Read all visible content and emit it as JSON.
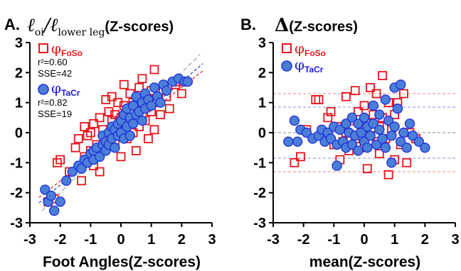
{
  "colors": {
    "foso": "#e8141c",
    "tacr": "#2233dd",
    "tacr_fill": "#4b7fd6",
    "zero_line": "#8a8a8a",
    "ci_red": "#f08080",
    "ci_blue": "#8888ee"
  },
  "panels": {
    "a": {
      "letter": "A.",
      "title_l1": "ℓ",
      "title_l1_sub": "oi",
      "title_sep": "/",
      "title_l2": "ℓ",
      "title_l2_sub": "lower leg",
      "title_suffix": "(Z-scores)",
      "legend_foso_symbol": "φ",
      "legend_foso_sub": "FoSo",
      "legend_foso_r2": "r²=0.60",
      "legend_foso_sse": "SSE=42",
      "legend_tacr_symbol": "φ",
      "legend_tacr_sub": "TaCr",
      "legend_tacr_r2": "r²=0.82",
      "legend_tacr_sse": "SSE=19",
      "xlabel": "Foot Angles(Z-scores)"
    },
    "b": {
      "letter": "B.",
      "title_delta": "Δ",
      "title_suffix": "(Z-scores)",
      "legend_foso_symbol": "φ",
      "legend_foso_sub": "FoSo",
      "legend_tacr_symbol": "φ",
      "legend_tacr_sub": "TaCr",
      "xlabel": "mean(Z-scores)"
    }
  },
  "chart_data": [
    {
      "type": "scatter",
      "panel": "A",
      "xlabel": "Foot Angles(Z-scores)",
      "xlim": [
        -3,
        3
      ],
      "ylim": [
        -3,
        3
      ],
      "xticks": [
        "-3",
        "-2",
        "-1",
        "0",
        "1",
        "2",
        "3"
      ],
      "yticks": [
        "3",
        "2",
        "1",
        "0",
        "-1",
        "-2",
        "-3"
      ],
      "series": [
        {
          "name": "φFoSo",
          "marker": "square",
          "regression": {
            "slope": 0.78,
            "intercept": -0.05,
            "r2": 0.6,
            "sse": 42
          },
          "points": [
            [
              -2.4,
              -2.3
            ],
            [
              -2.2,
              -2.2
            ],
            [
              -2.1,
              -1.0
            ],
            [
              -2.0,
              -0.9
            ],
            [
              -1.7,
              -1.3
            ],
            [
              -1.5,
              -0.5
            ],
            [
              -1.4,
              -0.2
            ],
            [
              -1.3,
              -1.6
            ],
            [
              -1.2,
              -0.8
            ],
            [
              -1.2,
              0.2
            ],
            [
              -1.1,
              -0.1
            ],
            [
              -1.0,
              -0.6
            ],
            [
              -1.0,
              0.0
            ],
            [
              -0.9,
              -1.1
            ],
            [
              -0.9,
              0.3
            ],
            [
              -0.8,
              -0.4
            ],
            [
              -0.7,
              -1.3
            ],
            [
              -0.7,
              0.5
            ],
            [
              -0.6,
              0.1
            ],
            [
              -0.5,
              -0.5
            ],
            [
              -0.5,
              1.1
            ],
            [
              -0.4,
              0.7
            ],
            [
              -0.4,
              -0.1
            ],
            [
              -0.3,
              0.4
            ],
            [
              -0.3,
              1.2
            ],
            [
              -0.2,
              -0.3
            ],
            [
              -0.2,
              0.6
            ],
            [
              -0.1,
              1.0
            ],
            [
              -0.1,
              0.2
            ],
            [
              0.0,
              -0.8
            ],
            [
              0.0,
              0.5
            ],
            [
              0.1,
              0.9
            ],
            [
              0.1,
              1.6
            ],
            [
              0.2,
              -0.2
            ],
            [
              0.2,
              0.3
            ],
            [
              0.3,
              1.3
            ],
            [
              0.3,
              0.7
            ],
            [
              0.4,
              0.0
            ],
            [
              0.4,
              1.0
            ],
            [
              0.5,
              0.5
            ],
            [
              0.5,
              -0.6
            ],
            [
              0.6,
              1.5
            ],
            [
              0.6,
              0.2
            ],
            [
              0.7,
              0.9
            ],
            [
              0.7,
              1.8
            ],
            [
              0.8,
              0.4
            ],
            [
              0.9,
              1.1
            ],
            [
              0.9,
              -0.2
            ],
            [
              1.0,
              0.7
            ],
            [
              1.0,
              1.4
            ],
            [
              1.1,
              0.1
            ],
            [
              1.1,
              2.1
            ],
            [
              1.2,
              1.0
            ],
            [
              1.3,
              0.6
            ],
            [
              1.4,
              1.4
            ],
            [
              1.5,
              1.2
            ],
            [
              1.6,
              0.8
            ],
            [
              1.8,
              1.6
            ],
            [
              1.9,
              1.7
            ],
            [
              2.0,
              1.3
            ]
          ]
        },
        {
          "name": "φTaCr",
          "marker": "circle",
          "regression": {
            "slope": 0.86,
            "intercept": -0.02,
            "r2": 0.82,
            "sse": 19
          },
          "points": [
            [
              -2.5,
              -1.9
            ],
            [
              -2.4,
              -2.3
            ],
            [
              -2.3,
              -2.1
            ],
            [
              -2.2,
              -2.6
            ],
            [
              -2.0,
              -2.3
            ],
            [
              -1.8,
              -1.6
            ],
            [
              -1.6,
              -1.3
            ],
            [
              -1.4,
              -1.1
            ],
            [
              -1.3,
              -1.2
            ],
            [
              -1.2,
              -0.9
            ],
            [
              -1.1,
              -1.0
            ],
            [
              -1.0,
              -0.7
            ],
            [
              -0.9,
              -0.6
            ],
            [
              -0.9,
              -0.9
            ],
            [
              -0.8,
              -0.5
            ],
            [
              -0.7,
              -0.8
            ],
            [
              -0.6,
              -0.4
            ],
            [
              -0.6,
              -0.1
            ],
            [
              -0.5,
              -0.3
            ],
            [
              -0.5,
              -0.6
            ],
            [
              -0.4,
              0.0
            ],
            [
              -0.4,
              -0.4
            ],
            [
              -0.3,
              0.2
            ],
            [
              -0.3,
              -0.2
            ],
            [
              -0.2,
              0.1
            ],
            [
              -0.2,
              -0.5
            ],
            [
              -0.1,
              0.3
            ],
            [
              -0.1,
              -0.1
            ],
            [
              0.0,
              0.0
            ],
            [
              0.0,
              0.4
            ],
            [
              0.1,
              0.6
            ],
            [
              0.1,
              -0.2
            ],
            [
              0.2,
              0.2
            ],
            [
              0.2,
              0.8
            ],
            [
              0.3,
              0.5
            ],
            [
              0.3,
              -0.1
            ],
            [
              0.4,
              0.9
            ],
            [
              0.4,
              0.3
            ],
            [
              0.5,
              0.6
            ],
            [
              0.5,
              1.2
            ],
            [
              0.6,
              0.7
            ],
            [
              0.7,
              1.0
            ],
            [
              0.7,
              0.4
            ],
            [
              0.8,
              1.3
            ],
            [
              0.8,
              0.8
            ],
            [
              0.9,
              1.1
            ],
            [
              1.0,
              0.9
            ],
            [
              1.1,
              1.5
            ],
            [
              1.2,
              1.2
            ],
            [
              1.3,
              1.0
            ],
            [
              1.4,
              1.6
            ],
            [
              1.5,
              1.4
            ],
            [
              1.7,
              1.7
            ],
            [
              1.9,
              1.8
            ],
            [
              2.1,
              1.7
            ],
            [
              2.2,
              1.7
            ]
          ]
        }
      ]
    },
    {
      "type": "scatter",
      "panel": "B",
      "xlabel": "mean(Z-scores)",
      "xlim": [
        -3,
        3
      ],
      "ylim": [
        -3,
        3
      ],
      "xticks": [
        "-3",
        "-2",
        "-1",
        "0",
        "1",
        "2",
        "3"
      ],
      "yticks": [
        "3",
        "2",
        "1",
        "0",
        "-1",
        "-2",
        "-3"
      ],
      "reference_lines": [
        {
          "y": 0,
          "color": "#8a8a8a"
        },
        {
          "y": 1.3,
          "color": "#f08080"
        },
        {
          "y": -1.3,
          "color": "#f08080"
        },
        {
          "y": 0.85,
          "color": "#8888ee"
        },
        {
          "y": -0.85,
          "color": "#8888ee"
        }
      ],
      "series": [
        {
          "name": "φFoSo",
          "marker": "square",
          "points": [
            [
              -2.3,
              -1.0
            ],
            [
              -2.1,
              -0.8
            ],
            [
              -1.9,
              0.1
            ],
            [
              -1.6,
              1.1
            ],
            [
              -1.5,
              1.1
            ],
            [
              -1.3,
              -0.2
            ],
            [
              -1.2,
              0.5
            ],
            [
              -1.1,
              0.7
            ],
            [
              -1.0,
              -0.4
            ],
            [
              -0.9,
              0.2
            ],
            [
              -0.8,
              -0.9
            ],
            [
              -0.7,
              -0.3
            ],
            [
              -0.6,
              1.2
            ],
            [
              -0.6,
              0.0
            ],
            [
              -0.5,
              -0.6
            ],
            [
              -0.4,
              0.4
            ],
            [
              -0.3,
              1.4
            ],
            [
              -0.3,
              -0.2
            ],
            [
              -0.2,
              0.7
            ],
            [
              -0.1,
              0.1
            ],
            [
              0.0,
              -0.5
            ],
            [
              0.0,
              0.9
            ],
            [
              0.1,
              -1.2
            ],
            [
              0.1,
              0.3
            ],
            [
              0.2,
              1.5
            ],
            [
              0.2,
              -0.1
            ],
            [
              0.3,
              0.6
            ],
            [
              0.4,
              1.3
            ],
            [
              0.4,
              -0.3
            ],
            [
              0.5,
              0.2
            ],
            [
              0.5,
              -0.7
            ],
            [
              0.6,
              1.9
            ],
            [
              0.6,
              0.5
            ],
            [
              0.7,
              -0.2
            ],
            [
              0.8,
              1.0
            ],
            [
              0.8,
              -1.4
            ],
            [
              0.9,
              0.1
            ],
            [
              1.0,
              -0.9
            ],
            [
              1.0,
              0.6
            ],
            [
              1.1,
              1.0
            ],
            [
              1.2,
              -0.4
            ],
            [
              1.3,
              1.3
            ],
            [
              1.4,
              -1.0
            ],
            [
              1.5,
              0.0
            ],
            [
              1.7,
              -0.2
            ]
          ]
        },
        {
          "name": "φTaCr",
          "marker": "circle",
          "points": [
            [
              -2.5,
              -0.3
            ],
            [
              -2.3,
              0.4
            ],
            [
              -2.2,
              -0.3
            ],
            [
              -2.1,
              0.1
            ],
            [
              -1.9,
              0.0
            ],
            [
              -1.7,
              -0.2
            ],
            [
              -1.5,
              -0.1
            ],
            [
              -1.4,
              0.1
            ],
            [
              -1.3,
              -0.3
            ],
            [
              -1.2,
              0.0
            ],
            [
              -1.1,
              -0.2
            ],
            [
              -1.0,
              0.2
            ],
            [
              -0.9,
              -1.1
            ],
            [
              -0.9,
              -0.4
            ],
            [
              -0.8,
              0.1
            ],
            [
              -0.7,
              -0.3
            ],
            [
              -0.6,
              0.3
            ],
            [
              -0.6,
              -0.5
            ],
            [
              -0.5,
              0.0
            ],
            [
              -0.4,
              -0.4
            ],
            [
              -0.4,
              0.5
            ],
            [
              -0.3,
              -0.1
            ],
            [
              -0.2,
              0.3
            ],
            [
              -0.2,
              -0.6
            ],
            [
              -0.1,
              0.0
            ],
            [
              0.0,
              -0.3
            ],
            [
              0.0,
              0.5
            ],
            [
              0.1,
              0.2
            ],
            [
              0.1,
              -0.5
            ],
            [
              0.2,
              -0.1
            ],
            [
              0.3,
              0.9
            ],
            [
              0.3,
              0.3
            ],
            [
              0.4,
              -0.4
            ],
            [
              0.5,
              0.1
            ],
            [
              0.5,
              0.6
            ],
            [
              0.6,
              -0.2
            ],
            [
              0.7,
              1.1
            ],
            [
              0.7,
              -0.5
            ],
            [
              0.8,
              0.4
            ],
            [
              0.9,
              -0.1
            ],
            [
              0.9,
              -1.0
            ],
            [
              1.0,
              1.5
            ],
            [
              1.0,
              0.2
            ],
            [
              1.1,
              0.8
            ],
            [
              1.2,
              -0.3
            ],
            [
              1.2,
              1.6
            ],
            [
              1.3,
              0.0
            ],
            [
              1.4,
              -0.5
            ],
            [
              1.5,
              0.3
            ],
            [
              1.6,
              -0.1
            ],
            [
              1.8,
              -0.3
            ],
            [
              2.0,
              -0.5
            ]
          ]
        }
      ]
    }
  ]
}
